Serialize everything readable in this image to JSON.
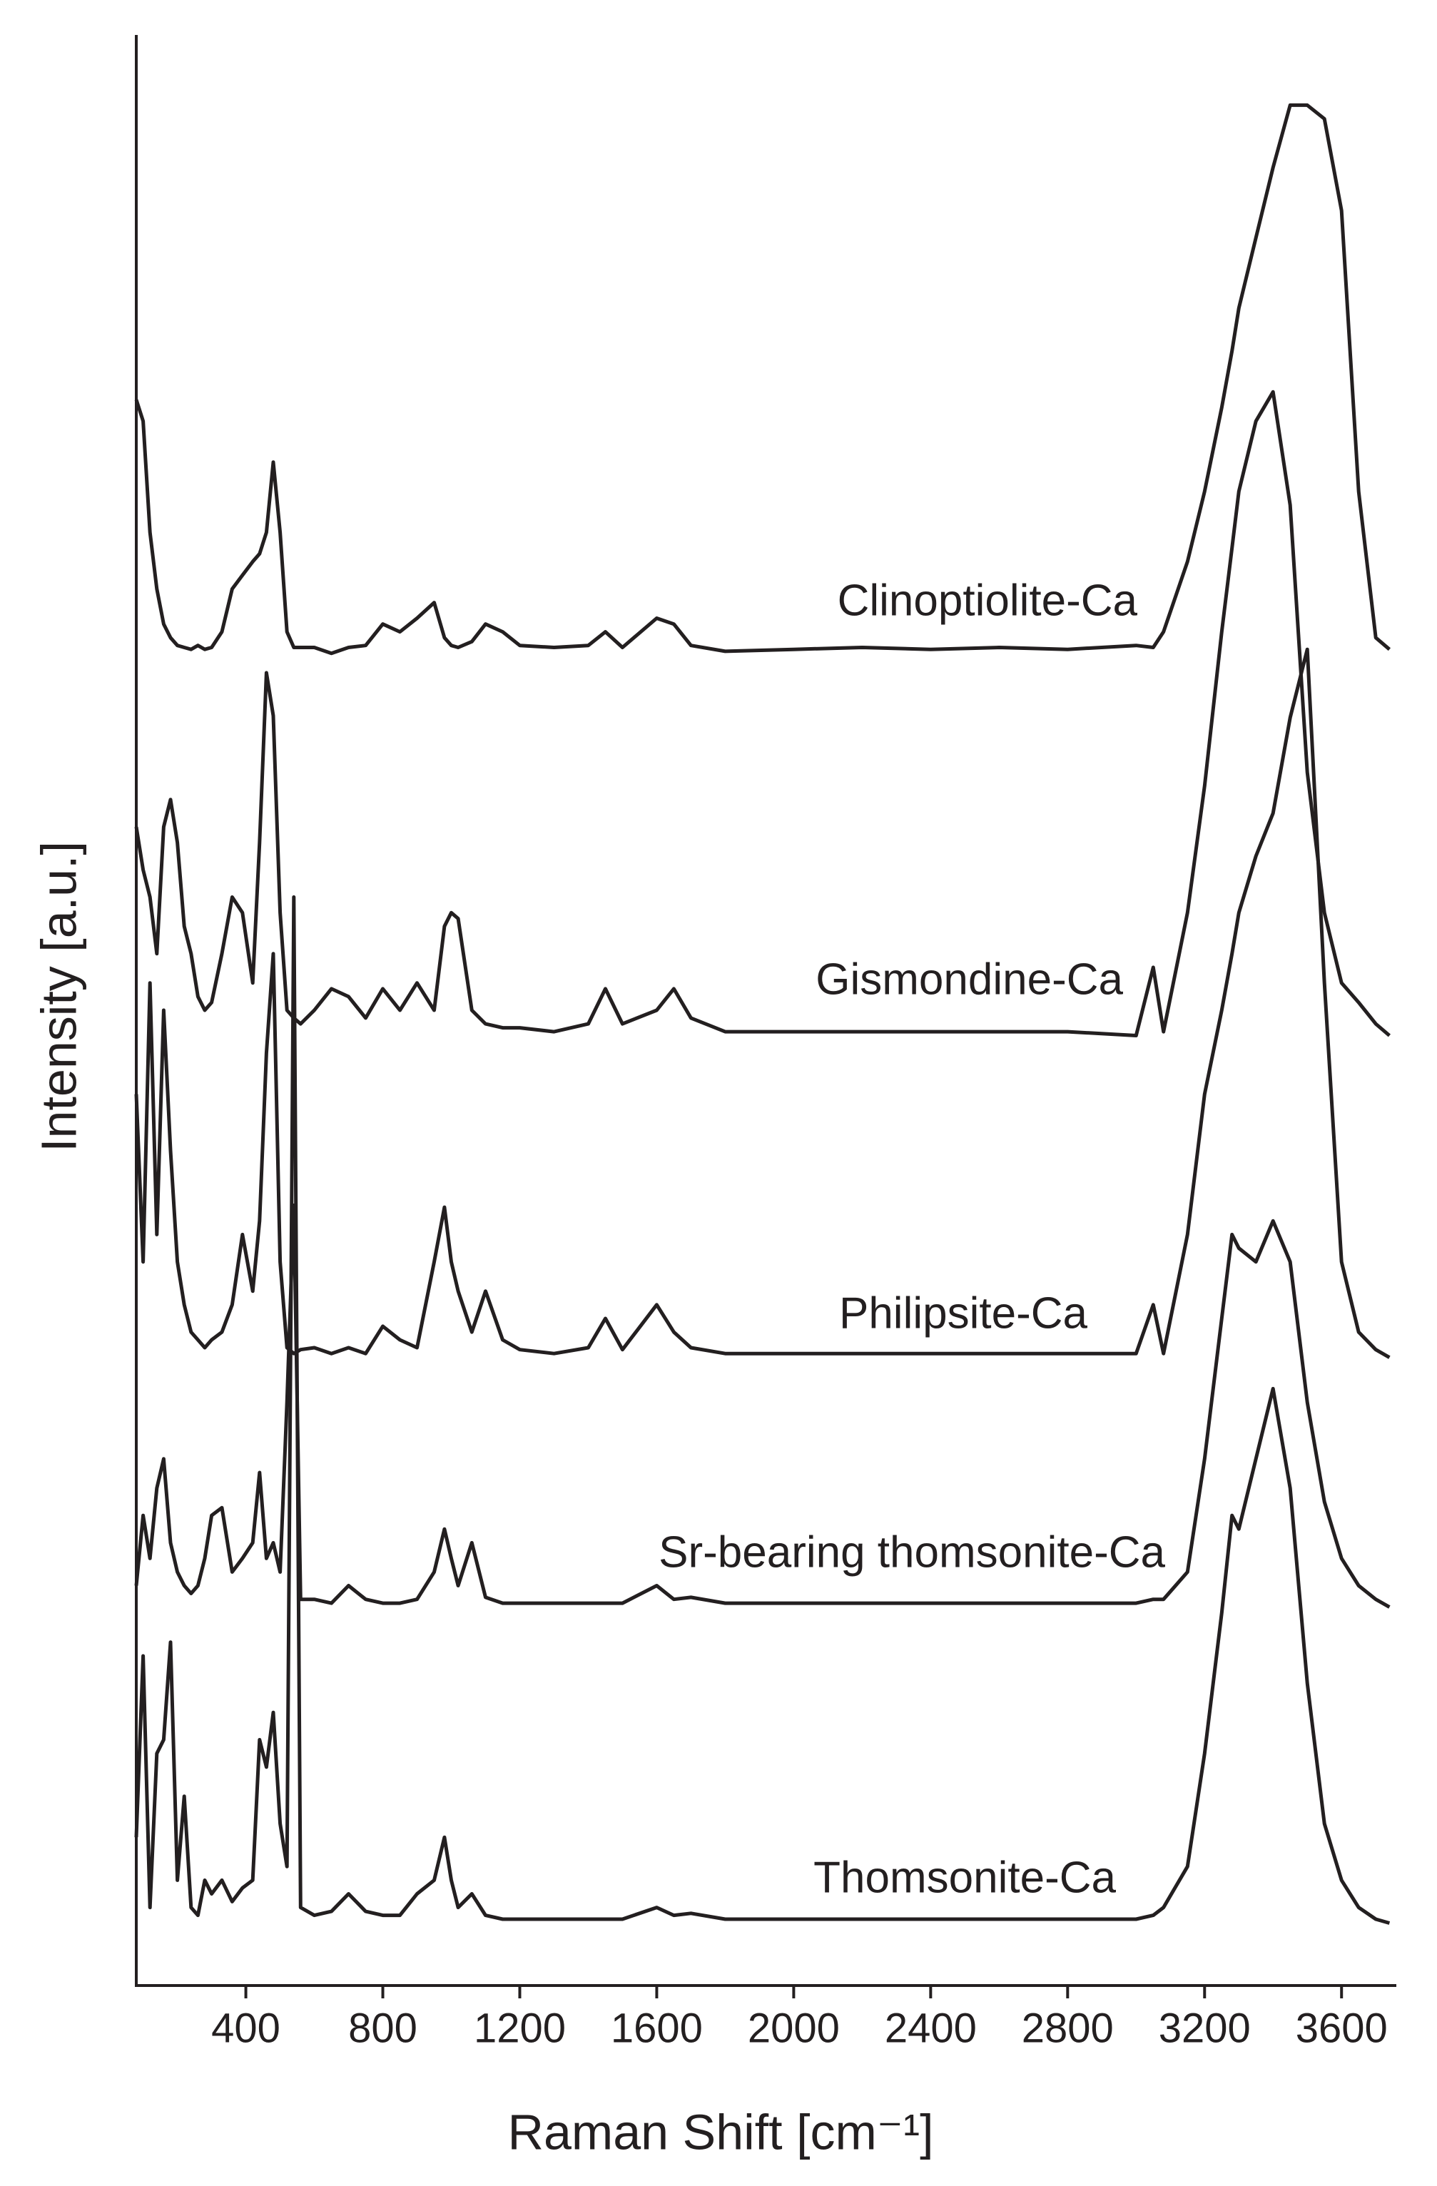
{
  "chart_data": {
    "type": "line",
    "x_label": "Raman Shift [cm⁻¹]",
    "y_label": "Intensity [a.u.]",
    "x": [
      80,
      100,
      120,
      140,
      160,
      180,
      200,
      220,
      240,
      260,
      280,
      300,
      330,
      360,
      390,
      420,
      440,
      460,
      480,
      500,
      520,
      540,
      560,
      600,
      650,
      700,
      750,
      800,
      850,
      900,
      950,
      980,
      1000,
      1020,
      1060,
      1100,
      1150,
      1200,
      1300,
      1400,
      1450,
      1500,
      1600,
      1650,
      1700,
      1800,
      2000,
      2200,
      2400,
      2600,
      2800,
      3000,
      3050,
      3080,
      3150,
      3200,
      3250,
      3280,
      3300,
      3350,
      3400,
      3450,
      3500,
      3550,
      3600,
      3650,
      3700,
      3740
    ],
    "series": [
      {
        "name": "Clinoptiolite-Ca",
        "color": "#231f20",
        "values": [
          81.3,
          80.2,
          74.5,
          71.6,
          69.8,
          69.1,
          68.7,
          68.6,
          68.5,
          68.7,
          68.5,
          68.6,
          69.4,
          71.6,
          72.3,
          73.0,
          73.4,
          74.5,
          78.1,
          74.5,
          69.4,
          68.6,
          68.6,
          68.6,
          68.3,
          68.6,
          68.7,
          69.8,
          69.4,
          70.1,
          70.9,
          69.1,
          68.7,
          68.6,
          68.9,
          69.8,
          69.4,
          68.7,
          68.6,
          68.7,
          69.4,
          68.6,
          70.1,
          69.8,
          68.7,
          68.4,
          68.5,
          68.6,
          68.5,
          68.6,
          68.5,
          68.7,
          68.6,
          69.4,
          73.0,
          76.6,
          80.9,
          83.8,
          86.0,
          89.6,
          93.2,
          96.4,
          96.4,
          95.7,
          91.0,
          76.6,
          69.1,
          68.5
        ]
      },
      {
        "name": "Gismondine-Ca",
        "color": "#231f20",
        "values": [
          59.4,
          57.2,
          55.8,
          52.9,
          59.4,
          60.8,
          58.6,
          54.3,
          52.9,
          50.7,
          50.0,
          50.4,
          52.9,
          55.8,
          55.0,
          51.4,
          58.6,
          67.3,
          65.1,
          55.0,
          50.0,
          49.6,
          49.3,
          50.0,
          51.1,
          50.7,
          49.6,
          51.1,
          50.0,
          51.4,
          50.0,
          54.3,
          55.0,
          54.7,
          50.0,
          49.3,
          49.1,
          49.1,
          48.9,
          49.3,
          51.1,
          49.3,
          50.0,
          51.1,
          49.6,
          48.9,
          48.9,
          48.9,
          48.9,
          48.9,
          48.9,
          48.7,
          52.2,
          48.9,
          55.0,
          61.5,
          69.4,
          73.7,
          76.6,
          80.2,
          81.7,
          75.9,
          62.2,
          55.0,
          51.4,
          50.4,
          49.3,
          48.7
        ]
      },
      {
        "name": "Philipsite-Ca",
        "color": "#231f20",
        "values": [
          45.7,
          37.1,
          51.4,
          38.5,
          50.0,
          42.8,
          37.1,
          34.9,
          33.5,
          33.1,
          32.7,
          33.1,
          33.5,
          34.9,
          38.5,
          35.6,
          39.2,
          47.8,
          52.9,
          37.1,
          32.7,
          32.4,
          32.6,
          32.7,
          32.4,
          32.7,
          32.4,
          33.8,
          33.1,
          32.7,
          37.1,
          39.9,
          37.1,
          35.6,
          33.5,
          35.6,
          33.1,
          32.6,
          32.4,
          32.7,
          34.2,
          32.6,
          34.9,
          33.5,
          32.7,
          32.4,
          32.4,
          32.4,
          32.4,
          32.4,
          32.4,
          32.4,
          34.9,
          32.4,
          38.5,
          45.7,
          50.0,
          52.9,
          55.0,
          57.9,
          60.1,
          65.0,
          68.5,
          51.4,
          37.1,
          33.5,
          32.6,
          32.2
        ]
      },
      {
        "name": "Sr-bearing thomsonite-Ca",
        "color": "#231f20",
        "values": [
          20.5,
          24.1,
          21.9,
          25.5,
          27.0,
          22.7,
          21.2,
          20.5,
          20.1,
          20.5,
          21.9,
          24.1,
          24.5,
          21.2,
          21.9,
          22.7,
          26.3,
          21.9,
          22.7,
          21.2,
          29.9,
          40.0,
          19.8,
          19.8,
          19.6,
          20.5,
          19.8,
          19.6,
          19.6,
          19.8,
          21.2,
          23.4,
          21.9,
          20.5,
          22.7,
          19.9,
          19.6,
          19.6,
          19.6,
          19.6,
          19.6,
          19.6,
          20.5,
          19.8,
          19.9,
          19.6,
          19.6,
          19.6,
          19.6,
          19.6,
          19.6,
          19.6,
          19.8,
          19.8,
          21.2,
          27.0,
          34.2,
          38.5,
          37.8,
          37.1,
          39.2,
          37.1,
          29.9,
          24.8,
          21.9,
          20.5,
          19.8,
          19.4
        ]
      },
      {
        "name": "Thomsonite-Ca",
        "color": "#231f20",
        "values": [
          7.6,
          16.9,
          4.0,
          11.9,
          12.6,
          17.6,
          5.4,
          9.7,
          4.0,
          3.6,
          5.4,
          4.7,
          5.4,
          4.3,
          5.0,
          5.4,
          12.6,
          11.2,
          14.0,
          8.3,
          6.1,
          55.8,
          4.0,
          3.6,
          3.8,
          4.7,
          3.8,
          3.6,
          3.6,
          4.7,
          5.4,
          7.6,
          5.4,
          4.0,
          4.7,
          3.6,
          3.4,
          3.4,
          3.4,
          3.4,
          3.4,
          3.4,
          4.0,
          3.6,
          3.7,
          3.4,
          3.4,
          3.4,
          3.4,
          3.4,
          3.4,
          3.4,
          3.6,
          4.0,
          6.1,
          11.9,
          19.1,
          24.1,
          23.4,
          27.0,
          30.6,
          25.5,
          15.5,
          8.3,
          5.4,
          4.0,
          3.4,
          3.2
        ]
      }
    ],
    "xlim": [
      80,
      3760
    ],
    "ylim": [
      0,
      100
    ],
    "xticks": [
      400,
      800,
      1200,
      1600,
      2000,
      2400,
      2800,
      3200,
      3600
    ]
  }
}
